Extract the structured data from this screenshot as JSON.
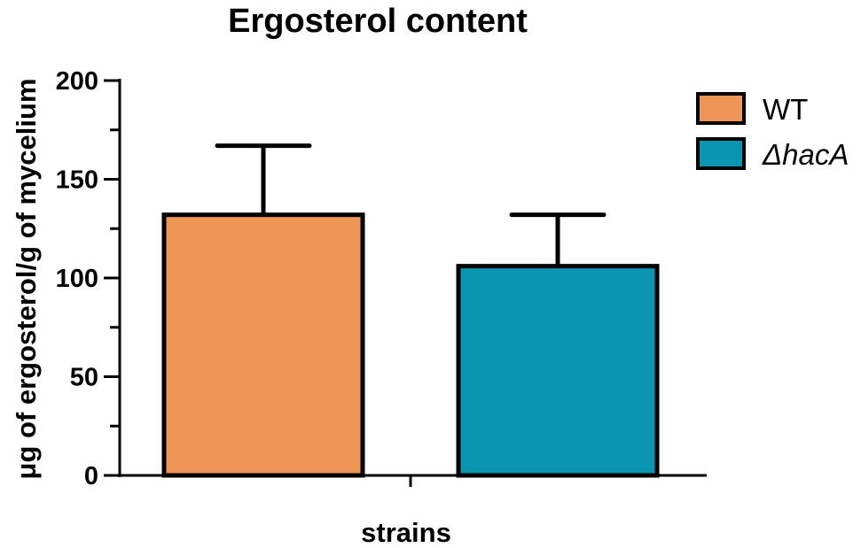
{
  "chart_data": {
    "type": "bar",
    "title": "Ergosterol content",
    "xlabel": "strains",
    "ylabel": "μg of ergosterol/g of mycelium",
    "ylim": [
      0,
      200
    ],
    "yticks": [
      0,
      50,
      100,
      150,
      200
    ],
    "grid": false,
    "legend_position": "top-right",
    "series": [
      {
        "name": "WT",
        "value": 132,
        "error": 35,
        "color": "#EE9655",
        "italic": false
      },
      {
        "name": "ΔhacA",
        "value": 106,
        "error": 26,
        "color": "#0A96B0",
        "italic": true
      }
    ]
  }
}
